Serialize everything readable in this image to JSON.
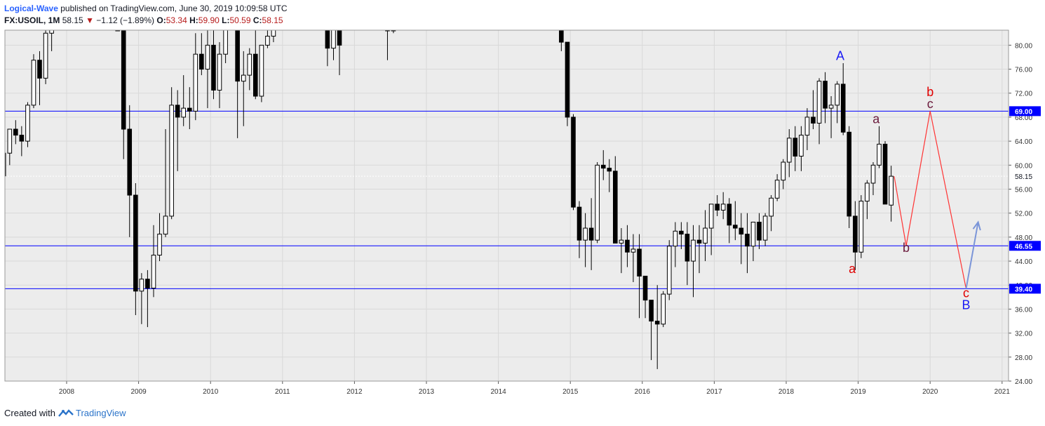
{
  "header": {
    "publisher": "Logical-Wave",
    "published_text": "published on TradingView.com, June 30, 2019 10:09:58 UTC",
    "symbol": "FX:USOIL, 1M",
    "last": "58.15",
    "change_arrow": "▼",
    "change": "−1.12 (−1.89%)",
    "o_label": "O:",
    "o": "53.34",
    "h_label": "H:",
    "h": "59.90",
    "l_label": "L:",
    "l": "50.59",
    "c_label": "C:",
    "c": "58.15"
  },
  "footer": {
    "created_with": "Created with",
    "brand": "TradingView",
    "logo_icon": "tradingview-logo-icon"
  },
  "chart_data": {
    "type": "candlestick",
    "x_ticks": [
      "2008",
      "2009",
      "2010",
      "2011",
      "2012",
      "2013",
      "2014",
      "2015",
      "2016",
      "2017",
      "2018",
      "2019",
      "2020",
      "2021"
    ],
    "y_ticks": [
      "24.00",
      "28.00",
      "32.00",
      "36.00",
      "40.00",
      "44.00",
      "48.00",
      "52.00",
      "56.00",
      "60.00",
      "64.00",
      "68.00",
      "72.00",
      "76.00",
      "80.00"
    ],
    "ylim": [
      24,
      82.5
    ],
    "xlim_start": "2007-01",
    "grid": true,
    "last_price_label": "58.15",
    "horizontal_levels": [
      {
        "value": 69.0,
        "label": "69.00",
        "color": "#0000ff"
      },
      {
        "value": 46.55,
        "label": "46.55",
        "color": "#0000ff"
      },
      {
        "value": 39.4,
        "label": "39.40",
        "color": "#0000ff"
      }
    ],
    "candles": [
      [
        2007.0,
        61.1,
        62.0,
        56.5,
        58.2
      ],
      [
        2007.083,
        58.2,
        64.0,
        57.0,
        62.0
      ],
      [
        2007.167,
        62.0,
        66.0,
        60.0,
        66.0
      ],
      [
        2007.25,
        66.0,
        67.5,
        63.5,
        65.0
      ],
      [
        2007.333,
        65.0,
        66.5,
        61.5,
        64.0
      ],
      [
        2007.417,
        64.0,
        70.5,
        63.0,
        70.0
      ],
      [
        2007.5,
        70.0,
        78.5,
        69.5,
        77.5
      ],
      [
        2007.583,
        77.5,
        79.0,
        70.0,
        74.5
      ],
      [
        2007.667,
        74.5,
        82.5,
        73.5,
        82.0
      ],
      [
        2007.75,
        82.0,
        82.5,
        79.0,
        82.5
      ],
      [
        2008.667,
        82.5,
        82.5,
        82.5,
        82.5
      ],
      [
        2008.75,
        82.5,
        82.5,
        61.0,
        66.0
      ],
      [
        2008.833,
        66.0,
        70.0,
        48.0,
        55.0
      ],
      [
        2008.917,
        55.0,
        57.0,
        35.0,
        39.0
      ],
      [
        2009.0,
        39.0,
        42.0,
        33.5,
        41.0
      ],
      [
        2009.083,
        41.0,
        42.5,
        33.0,
        39.5
      ],
      [
        2009.167,
        39.5,
        50.0,
        38.0,
        45.0
      ],
      [
        2009.25,
        45.0,
        52.0,
        44.0,
        48.5
      ],
      [
        2009.333,
        48.5,
        66.0,
        48.0,
        51.5
      ],
      [
        2009.417,
        51.5,
        73.0,
        51.0,
        70.0
      ],
      [
        2009.5,
        70.0,
        72.5,
        59.0,
        68.0
      ],
      [
        2009.583,
        68.0,
        75.0,
        66.5,
        69.5
      ],
      [
        2009.667,
        69.5,
        73.0,
        66.0,
        69.0
      ],
      [
        2009.75,
        69.0,
        82.0,
        67.5,
        78.5
      ],
      [
        2009.833,
        78.5,
        82.0,
        75.0,
        76.0
      ],
      [
        2009.917,
        76.0,
        82.5,
        69.5,
        80.0
      ],
      [
        2010.0,
        80.0,
        83.5,
        71.0,
        72.5
      ],
      [
        2010.083,
        72.5,
        80.5,
        69.5,
        78.5
      ],
      [
        2010.167,
        78.5,
        82.5,
        77.0,
        82.5
      ],
      [
        2010.333,
        82.5,
        83.5,
        64.5,
        74.0
      ],
      [
        2010.417,
        74.0,
        79.0,
        66.5,
        75.0
      ],
      [
        2010.5,
        75.0,
        79.5,
        72.5,
        78.5
      ],
      [
        2010.583,
        78.5,
        83.0,
        71.0,
        71.5
      ],
      [
        2010.667,
        71.5,
        80.0,
        70.5,
        80.0
      ],
      [
        2010.75,
        80.0,
        84.5,
        79.5,
        81.5
      ],
      [
        2010.833,
        81.5,
        82.5,
        80.5,
        82.5
      ],
      [
        2011.583,
        82.5,
        82.5,
        76.5,
        79.5
      ],
      [
        2011.667,
        79.5,
        82.5,
        77.5,
        82.5
      ],
      [
        2011.75,
        82.5,
        82.5,
        75.0,
        80.0
      ],
      [
        2012.417,
        82.5,
        82.5,
        77.5,
        82.5
      ],
      [
        2012.5,
        82.5,
        82.5,
        82.0,
        82.5
      ],
      [
        2014.833,
        82.5,
        82.5,
        79.0,
        80.5
      ],
      [
        2014.917,
        80.5,
        80.5,
        66.5,
        68.0
      ],
      [
        2015.0,
        68.0,
        68.5,
        52.5,
        53.0
      ],
      [
        2015.083,
        53.0,
        54.0,
        44.5,
        47.5
      ],
      [
        2015.167,
        47.5,
        52.0,
        43.0,
        49.5
      ],
      [
        2015.25,
        49.5,
        54.5,
        42.5,
        47.5
      ],
      [
        2015.333,
        47.5,
        60.5,
        47.0,
        60.0
      ],
      [
        2015.417,
        60.0,
        62.5,
        57.5,
        59.5
      ],
      [
        2015.5,
        59.5,
        61.0,
        55.5,
        59.0
      ],
      [
        2015.583,
        59.0,
        61.5,
        47.0,
        47.0
      ],
      [
        2015.667,
        47.0,
        49.5,
        42.0,
        47.5
      ],
      [
        2015.75,
        47.5,
        50.0,
        43.0,
        45.5
      ],
      [
        2015.833,
        45.5,
        48.5,
        40.5,
        46.0
      ],
      [
        2015.917,
        46.0,
        48.5,
        34.5,
        41.5
      ],
      [
        2016.0,
        41.5,
        41.5,
        34.5,
        37.5
      ],
      [
        2016.083,
        37.5,
        37.5,
        27.5,
        34.0
      ],
      [
        2016.167,
        34.0,
        40.0,
        26.0,
        33.5
      ],
      [
        2016.25,
        33.5,
        39.0,
        33.0,
        38.5
      ],
      [
        2016.333,
        38.5,
        47.5,
        37.5,
        46.5
      ],
      [
        2016.417,
        46.5,
        50.5,
        43.0,
        49.0
      ],
      [
        2016.5,
        49.0,
        50.5,
        46.0,
        48.5
      ],
      [
        2016.583,
        48.5,
        50.5,
        40.0,
        44.0
      ],
      [
        2016.667,
        44.0,
        50.0,
        38.0,
        47.5
      ],
      [
        2016.75,
        47.5,
        50.0,
        42.0,
        47.0
      ],
      [
        2016.833,
        47.0,
        52.5,
        44.0,
        49.5
      ],
      [
        2016.917,
        49.5,
        53.5,
        45.0,
        53.5
      ],
      [
        2017.0,
        53.5,
        55.0,
        51.5,
        52.5
      ],
      [
        2017.083,
        52.5,
        55.5,
        51.0,
        53.5
      ],
      [
        2017.167,
        53.5,
        54.5,
        47.0,
        50.0
      ],
      [
        2017.25,
        50.0,
        54.0,
        47.5,
        49.5
      ],
      [
        2017.333,
        49.5,
        52.0,
        43.5,
        48.5
      ],
      [
        2017.417,
        48.5,
        52.0,
        42.0,
        46.5
      ],
      [
        2017.5,
        46.5,
        50.5,
        44.0,
        50.5
      ],
      [
        2017.583,
        50.5,
        52.0,
        46.0,
        47.5
      ],
      [
        2017.667,
        47.5,
        52.0,
        46.5,
        51.5
      ],
      [
        2017.75,
        51.5,
        55.0,
        49.0,
        54.5
      ],
      [
        2017.833,
        54.5,
        58.5,
        54.0,
        57.5
      ],
      [
        2017.917,
        57.5,
        61.0,
        56.0,
        60.5
      ],
      [
        2018.0,
        60.5,
        66.0,
        58.0,
        64.5
      ],
      [
        2018.083,
        64.5,
        66.5,
        59.0,
        61.5
      ],
      [
        2018.167,
        61.5,
        66.5,
        59.0,
        65.0
      ],
      [
        2018.25,
        65.0,
        69.5,
        62.5,
        68.0
      ],
      [
        2018.333,
        68.0,
        72.5,
        66.0,
        67.0
      ],
      [
        2018.417,
        67.0,
        74.5,
        63.5,
        74.0
      ],
      [
        2018.5,
        74.0,
        75.5,
        67.0,
        69.5
      ],
      [
        2018.583,
        69.5,
        71.5,
        64.5,
        70.0
      ],
      [
        2018.667,
        70.0,
        74.0,
        67.0,
        73.5
      ],
      [
        2018.75,
        73.5,
        77.0,
        65.0,
        65.5
      ],
      [
        2018.833,
        65.5,
        66.5,
        49.5,
        51.5
      ],
      [
        2018.917,
        51.5,
        54.0,
        42.5,
        45.5
      ],
      [
        2019.0,
        45.5,
        55.0,
        44.5,
        54.0
      ],
      [
        2019.083,
        54.0,
        57.5,
        51.0,
        57.0
      ],
      [
        2019.167,
        57.0,
        60.5,
        55.0,
        60.0
      ],
      [
        2019.25,
        60.0,
        66.5,
        59.5,
        63.5
      ],
      [
        2019.333,
        63.5,
        64.0,
        53.5,
        53.5
      ],
      [
        2019.417,
        53.34,
        59.9,
        50.59,
        58.15
      ]
    ],
    "projection_red": [
      [
        2019.5,
        58.15
      ],
      [
        2019.667,
        46.55
      ],
      [
        2020.0,
        69.0
      ],
      [
        2020.5,
        39.4
      ]
    ],
    "projection_blue": [
      [
        2020.5,
        39.4
      ],
      [
        2020.667,
        50.5
      ]
    ],
    "wave_labels": [
      {
        "text": "A",
        "x": 2018.75,
        "y": 77.5,
        "color": "#1b1bf5"
      },
      {
        "text": "a",
        "x": 2019.25,
        "y": 67.0,
        "color": "#6b1a3c"
      },
      {
        "text": "a",
        "x": 2018.917,
        "y": 42.0,
        "color": "#e00000"
      },
      {
        "text": "b",
        "x": 2020.0,
        "y": 71.5,
        "color": "#e00000"
      },
      {
        "text": "c",
        "x": 2020.0,
        "y": 69.5,
        "color": "#6b1a3c"
      },
      {
        "text": "b",
        "x": 2019.667,
        "y": 45.5,
        "color": "#6b1a3c"
      },
      {
        "text": "c",
        "x": 2020.5,
        "y": 38.0,
        "color": "#e00000"
      },
      {
        "text": "B",
        "x": 2020.5,
        "y": 36.0,
        "color": "#1b1bf5"
      }
    ]
  }
}
